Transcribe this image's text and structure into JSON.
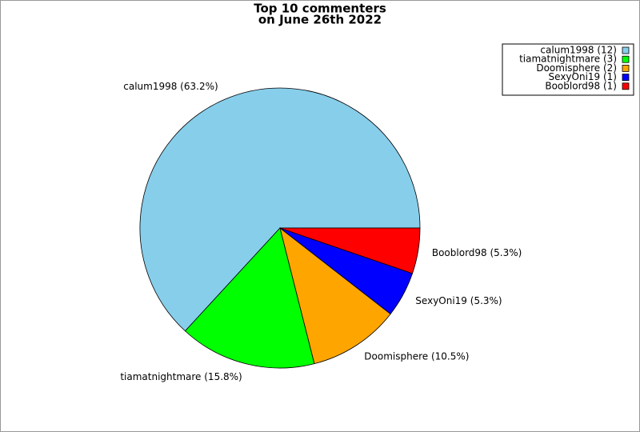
{
  "chart_data": {
    "type": "pie",
    "title": [
      "Top 10 commenters",
      "on June 26th 2022"
    ],
    "values": [
      12,
      3,
      2,
      1,
      1
    ],
    "value_labels": [
      "calum1998 (12)",
      "tiamatnightmare (3)",
      "Doomisphere (2)",
      "SexyOni19 (1)",
      "Booblord98 (1)"
    ],
    "percentages": [
      63.2,
      15.8,
      10.5,
      5.3,
      5.3
    ],
    "percentage_labels": [
      "calum1998 (63.2%)",
      "tiamatnightmare (15.8%)",
      "Doomisphere (10.5%)",
      "SexyOni19 (5.3%)",
      "Booblord98 (5.3%)"
    ],
    "colors": [
      "#87ceeb",
      "#00ff00",
      "#ffa500",
      "#0000ff",
      "#ff0000"
    ],
    "legend": "upper right"
  }
}
